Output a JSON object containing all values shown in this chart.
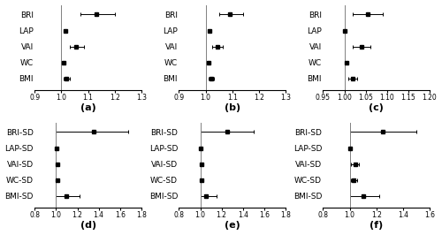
{
  "panels": [
    {
      "label": "(a)",
      "categories": [
        "BRI",
        "LAP",
        "VAI",
        "WC",
        "BMI"
      ],
      "centers": [
        1.13,
        1.015,
        1.055,
        1.01,
        1.02
      ],
      "ci_low": [
        1.07,
        1.012,
        1.03,
        1.005,
        1.01
      ],
      "ci_high": [
        1.2,
        1.018,
        1.085,
        1.015,
        1.03
      ],
      "xlim": [
        0.9,
        1.3
      ],
      "xticks": [
        0.9,
        1.0,
        1.1,
        1.2,
        1.3
      ],
      "xticklabels": [
        "0.9",
        "1.0",
        "1.1",
        "1.2",
        "1.3"
      ],
      "vline": 1.0
    },
    {
      "label": "(b)",
      "categories": [
        "BRI",
        "LAP",
        "VAI",
        "WC",
        "BMI"
      ],
      "centers": [
        1.09,
        1.015,
        1.045,
        1.01,
        1.02
      ],
      "ci_low": [
        1.05,
        1.012,
        1.025,
        1.005,
        1.01
      ],
      "ci_high": [
        1.14,
        1.018,
        1.065,
        1.015,
        1.03
      ],
      "xlim": [
        0.9,
        1.3
      ],
      "xticks": [
        0.9,
        1.0,
        1.1,
        1.2,
        1.3
      ],
      "xticklabels": [
        "0.9",
        "1.0",
        "1.1",
        "1.2",
        "1.3"
      ],
      "vline": 1.0
    },
    {
      "label": "(c)",
      "categories": [
        "BRI",
        "LAP",
        "VAI",
        "WC",
        "BMI"
      ],
      "centers": [
        1.055,
        1.0,
        1.04,
        1.005,
        1.02
      ],
      "ci_low": [
        1.02,
        0.997,
        1.02,
        1.001,
        1.01
      ],
      "ci_high": [
        1.09,
        1.003,
        1.06,
        1.009,
        1.03
      ],
      "xlim": [
        0.95,
        1.2
      ],
      "xticks": [
        0.95,
        1.0,
        1.05,
        1.1,
        1.15,
        1.2
      ],
      "xticklabels": [
        "0.95",
        "1.00",
        "1.05",
        "1.10",
        "1.15",
        "1.20"
      ],
      "vline": 1.0
    },
    {
      "label": "(d)",
      "categories": [
        "BRI-SD",
        "LAP-SD",
        "VAI-SD",
        "WC-SD",
        "BMI-SD"
      ],
      "centers": [
        1.35,
        1.005,
        1.01,
        1.01,
        1.1
      ],
      "ci_low": [
        1.0,
        1.001,
        1.005,
        1.005,
        1.0
      ],
      "ci_high": [
        1.68,
        1.009,
        1.015,
        1.015,
        1.22
      ],
      "xlim": [
        0.8,
        1.8
      ],
      "xticks": [
        0.8,
        1.0,
        1.2,
        1.4,
        1.6,
        1.8
      ],
      "xticklabels": [
        "0.8",
        "1.0",
        "1.2",
        "1.4",
        "1.6",
        "1.8"
      ],
      "vline": 1.0
    },
    {
      "label": "(e)",
      "categories": [
        "BRI-SD",
        "LAP-SD",
        "VAI-SD",
        "WC-SD",
        "BMI-SD"
      ],
      "centers": [
        1.25,
        1.005,
        1.01,
        1.01,
        1.05
      ],
      "ci_low": [
        1.0,
        1.001,
        1.005,
        1.005,
        1.0
      ],
      "ci_high": [
        1.5,
        1.009,
        1.015,
        1.015,
        1.15
      ],
      "xlim": [
        0.8,
        1.8
      ],
      "xticks": [
        0.8,
        1.0,
        1.2,
        1.4,
        1.6,
        1.8
      ],
      "xticklabels": [
        "0.8",
        "1.0",
        "1.2",
        "1.4",
        "1.6",
        "1.8"
      ],
      "vline": 1.0
    },
    {
      "label": "(f)",
      "categories": [
        "BRI-SD",
        "LAP-SD",
        "VAI-SD",
        "WC-SD",
        "BMI-SD"
      ],
      "centers": [
        1.25,
        1.005,
        1.04,
        1.03,
        1.1
      ],
      "ci_low": [
        1.0,
        1.001,
        1.01,
        1.01,
        1.0
      ],
      "ci_high": [
        1.5,
        1.009,
        1.07,
        1.055,
        1.22
      ],
      "xlim": [
        0.8,
        1.6
      ],
      "xticks": [
        0.8,
        1.0,
        1.2,
        1.4,
        1.6
      ],
      "xticklabels": [
        "0.8",
        "1.0",
        "1.2",
        "1.4",
        "1.6"
      ],
      "vline": 1.0
    }
  ],
  "marker_color": "black",
  "line_color": "black",
  "marker_size": 3,
  "label_fontsize": 6.5,
  "tick_fontsize": 5.5,
  "subplot_label_fontsize": 8
}
